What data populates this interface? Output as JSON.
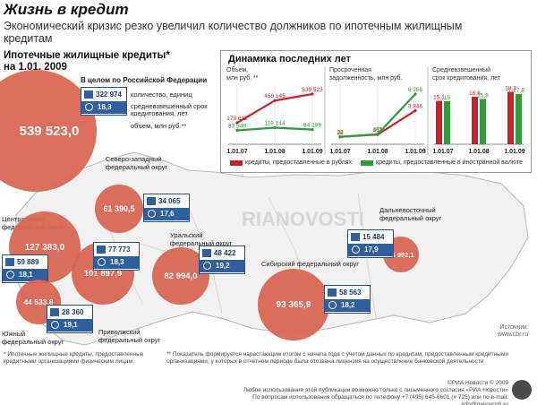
{
  "title": "Жизнь в кредит",
  "subtitle": "Экономический кризис резко увеличил количество должников по ипотечным жилищным кредитам",
  "section": {
    "line1": "Ипотечные жилищные кредиты*",
    "line2": "на 1.01. 2009"
  },
  "russia_total": {
    "value": "539 523,0",
    "label": "В целом по Российской Федерации",
    "count": "322 974",
    "term": "18,3"
  },
  "legend": {
    "count_label": "количество, единиц",
    "term_label": "средневзвешенный срок кредитования, лет",
    "volume_label": "объем, млн руб.**"
  },
  "districts": [
    {
      "name_l1": "Северо-западный",
      "name_l2": "федеральный округ",
      "value": "61 390,5",
      "count": "34 065",
      "term": "17,6"
    },
    {
      "name_l1": "Центральный",
      "name_l2": "федеральный округ",
      "value": "127 383,0",
      "count": "59 889",
      "term": "18,1"
    },
    {
      "name_l1": "",
      "name_l2": "",
      "value": "101 897,9",
      "count": "77 773",
      "term": "18,3"
    },
    {
      "name_l1": "Уральский",
      "name_l2": "федеральный округ",
      "value": "82 994,0",
      "count": "48 422",
      "term": "19,2"
    },
    {
      "name_l1": "Южный",
      "name_l2": "федеральный округ",
      "value": "44 533,8",
      "count": "28 360",
      "term": "19,1"
    },
    {
      "name_l1": "Приволжский",
      "name_l2": "федеральный округ",
      "value": "",
      "count": "",
      "term": ""
    },
    {
      "name_l1": "Сибирский федеральный округ",
      "name_l2": "",
      "value": "93 365,9",
      "count": "58 563",
      "term": "18,2"
    },
    {
      "name_l1": "Дальневосточный",
      "name_l2": "федеральный округ",
      "value": "25 952,1",
      "count": "15 484",
      "term": "17,9"
    }
  ],
  "dynamics": {
    "title": "Динамика последних лет",
    "panel1": {
      "label_l1": "Объем,",
      "label_l2": "млн руб. **"
    },
    "panel2": {
      "label_l1": "Просроченная",
      "label_l2": "задолженность, млн руб."
    },
    "panel3": {
      "label_l1": "Средневзвешенный",
      "label_l2": "срок кредитования, лет"
    },
    "legend_red": "кредиты, предоставленные в рублях",
    "legend_green": "кредиты, предоставленные в иностранной валюте"
  },
  "chart_data": [
    {
      "type": "line",
      "title": "Объем, млн руб. **",
      "x": [
        "1.01.07",
        "1.01.08",
        "1.01.09"
      ],
      "series": [
        {
          "name": "кредиты, предоставленные в рублях",
          "values": [
            179612,
            458145,
            539523
          ]
        },
        {
          "name": "кредиты, предоставленные в иностранной валюте",
          "values": [
            83949,
            118144,
            94289
          ]
        }
      ]
    },
    {
      "type": "line",
      "title": "Просроченная задолженность, млн руб.",
      "x": [
        "1.01.07",
        "1.01.08",
        "1.01.09"
      ],
      "series": [
        {
          "name": "кредиты, предоставленные в рублях",
          "values": [
            38,
            361,
            3846
          ]
        },
        {
          "name": "кредиты, предоставленные в иностранной валюте",
          "values": [
            22,
            435,
            6256
          ]
        }
      ]
    },
    {
      "type": "bar",
      "title": "Средневзвешенный срок кредитования, лет",
      "categories": [
        "1.01.07",
        "1.01.08",
        "1.01.09"
      ],
      "series": [
        {
          "name": "кредиты, предоставленные в рублях",
          "values": [
            15.1,
            16.6,
            18.3
          ]
        },
        {
          "name": "кредиты, предоставленные в иностранной валюте",
          "values": [
            15.0,
            15.8,
            17.5
          ]
        }
      ]
    }
  ],
  "source": {
    "l1": "Источник:",
    "l2": "www.cbr.ru"
  },
  "footnotes": {
    "f1_l1": "* Ипотечные жилищные кредиты, предоставленные",
    "f1_l2": "кредитными организациями физическим лицам",
    "f2_l1": "** Показатель формируется нарастающим итогом с начала года с учетом данных по кредитам, предоставленным кредитными",
    "f2_l2": "организациями, у которых в отчетном периоде была отозвана лицензия на осуществление банковской деятельности"
  },
  "credits": {
    "l1": "©РИА Новости © 2009",
    "l2": "Любое использование этой публикации возможно только с письменного согласия «РИА Новости»",
    "l3": "По вопросам использования обращаться по телефону +7 (495) 645-6601 (# 725) или по e-mail: info@rianovosti.ru"
  },
  "watermark": "RIANOVOSTI",
  "colors": {
    "bubble": "#d9654f",
    "red": "#c8202a",
    "green": "#2e9a3c",
    "blue": "#2f5f9e"
  }
}
